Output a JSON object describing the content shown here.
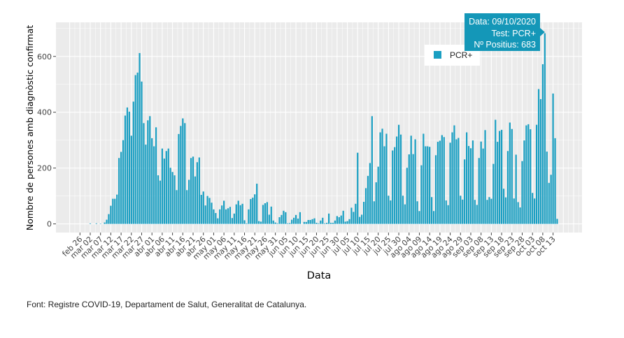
{
  "caption": "Font: Registre COVID-19, Departament de Salut, Generalitat de Catalunya.",
  "chart_data": {
    "type": "bar",
    "xlabel": "Data",
    "ylabel": "Nombre de persones amb diagnòstic confirmat",
    "ylim": [
      -31,
      722
    ],
    "yticks": [
      0,
      200,
      400,
      600
    ],
    "grid": true,
    "legend": {
      "position": "top-right",
      "entries": [
        {
          "name": "PCR+",
          "color": "#1a9fc2"
        }
      ]
    },
    "colors": {
      "bar": "#1a9fc2",
      "panel": "#ebebeb",
      "tooltip": "#1497b8"
    },
    "xticks": [
      {
        "date": "2020-02-26",
        "label": "feb 26"
      },
      {
        "date": "2020-03-02",
        "label": "mar 02"
      },
      {
        "date": "2020-03-07",
        "label": "mar 07"
      },
      {
        "date": "2020-03-12",
        "label": "mar 12"
      },
      {
        "date": "2020-03-17",
        "label": "mar 17"
      },
      {
        "date": "2020-03-22",
        "label": "mar 22"
      },
      {
        "date": "2020-03-27",
        "label": "mar 27"
      },
      {
        "date": "2020-04-01",
        "label": "abr 01"
      },
      {
        "date": "2020-04-06",
        "label": "abr 06"
      },
      {
        "date": "2020-04-11",
        "label": "abr 11"
      },
      {
        "date": "2020-04-16",
        "label": "abr 16"
      },
      {
        "date": "2020-04-21",
        "label": "abr 21"
      },
      {
        "date": "2020-04-26",
        "label": "abr 26"
      },
      {
        "date": "2020-05-01",
        "label": "may 01"
      },
      {
        "date": "2020-05-06",
        "label": "may 06"
      },
      {
        "date": "2020-05-11",
        "label": "may 11"
      },
      {
        "date": "2020-05-16",
        "label": "may 16"
      },
      {
        "date": "2020-05-21",
        "label": "may 21"
      },
      {
        "date": "2020-05-26",
        "label": "may 26"
      },
      {
        "date": "2020-05-31",
        "label": "may 31"
      },
      {
        "date": "2020-06-05",
        "label": "jun 05"
      },
      {
        "date": "2020-06-10",
        "label": "jun 10"
      },
      {
        "date": "2020-06-15",
        "label": "jun 15"
      },
      {
        "date": "2020-06-20",
        "label": "jun 20"
      },
      {
        "date": "2020-06-25",
        "label": "jun 25"
      },
      {
        "date": "2020-06-30",
        "label": "jun 30"
      },
      {
        "date": "2020-07-05",
        "label": "jul 05"
      },
      {
        "date": "2020-07-10",
        "label": "jul 10"
      },
      {
        "date": "2020-07-15",
        "label": "jul 15"
      },
      {
        "date": "2020-07-20",
        "label": "jul 20"
      },
      {
        "date": "2020-07-25",
        "label": "jul 25"
      },
      {
        "date": "2020-07-30",
        "label": "jul 30"
      },
      {
        "date": "2020-08-04",
        "label": "ago 04"
      },
      {
        "date": "2020-08-09",
        "label": "ago 09"
      },
      {
        "date": "2020-08-14",
        "label": "ago 14"
      },
      {
        "date": "2020-08-19",
        "label": "ago 19"
      },
      {
        "date": "2020-08-24",
        "label": "ago 24"
      },
      {
        "date": "2020-08-29",
        "label": "ago 29"
      },
      {
        "date": "2020-09-03",
        "label": "sep 03"
      },
      {
        "date": "2020-09-08",
        "label": "sep 08"
      },
      {
        "date": "2020-09-13",
        "label": "sep 13"
      },
      {
        "date": "2020-09-18",
        "label": "sep 18"
      },
      {
        "date": "2020-09-23",
        "label": "sep 23"
      },
      {
        "date": "2020-09-28",
        "label": "sep 28"
      },
      {
        "date": "2020-10-03",
        "label": "oct 03"
      },
      {
        "date": "2020-10-08",
        "label": "oct 08"
      },
      {
        "date": "2020-10-13",
        "label": "oct 13"
      }
    ],
    "series": [
      {
        "name": "PCR+",
        "values_by_month": {
          "2020-03": [
            0,
            2,
            0,
            0,
            2,
            0,
            1,
            0,
            5,
            15,
            35,
            65,
            90,
            90,
            105,
            236,
            258,
            300,
            388,
            417,
            402,
            316,
            438,
            533,
            542,
            612,
            510,
            361,
            284,
            371,
            386
          ],
          "2020-04": [
            307,
            278,
            346,
            174,
            155,
            270,
            234,
            261,
            270,
            201,
            186,
            174,
            121,
            322,
            351,
            378,
            361,
            121,
            158,
            236,
            241,
            170,
            221,
            238,
            104,
            116,
            66,
            100,
            93,
            76
          ],
          "2020-05": [
            52,
            39,
            20,
            52,
            66,
            83,
            52,
            56,
            61,
            21,
            37,
            70,
            83,
            67,
            72,
            13,
            2,
            52,
            89,
            94,
            106,
            144,
            10,
            8,
            68,
            74,
            78,
            33,
            62,
            12,
            5
          ],
          "2020-06": [
            2,
            24,
            32,
            47,
            42,
            2,
            3,
            15,
            22,
            32,
            19,
            42,
            0,
            7,
            7,
            14,
            14,
            17,
            20,
            4,
            2,
            12,
            22,
            2,
            4,
            37,
            4,
            4,
            12,
            28
          ],
          "2020-07": [
            24,
            30,
            47,
            8,
            10,
            17,
            58,
            43,
            72,
            255,
            25,
            33,
            79,
            128,
            172,
            218,
            386,
            81,
            149,
            205,
            328,
            341,
            278,
            323,
            101,
            84,
            263,
            275,
            313,
            355,
            320
          ],
          "2020-08": [
            101,
            70,
            201,
            249,
            316,
            250,
            303,
            81,
            46,
            210,
            323,
            278,
            278,
            276,
            96,
            46,
            246,
            294,
            298,
            318,
            311,
            84,
            67,
            291,
            328,
            353,
            303,
            308,
            101,
            87,
            231
          ],
          "2020-09": [
            328,
            279,
            271,
            299,
            86,
            68,
            236,
            295,
            270,
            336,
            86,
            96,
            90,
            215,
            373,
            294,
            333,
            337,
            126,
            95,
            261,
            363,
            340,
            91,
            248,
            78,
            59,
            225,
            299,
            353
          ],
          "2020-10": [
            357,
            339,
            111,
            91,
            355,
            483,
            447,
            572,
            683,
            259,
            147,
            176,
            467,
            307,
            18
          ]
        }
      }
    ],
    "tooltip": {
      "date": "2020-10-09",
      "line1": "Data: 09/10/2020",
      "line2": "Test: PCR+",
      "line3": "Nº Positius: 683"
    }
  }
}
